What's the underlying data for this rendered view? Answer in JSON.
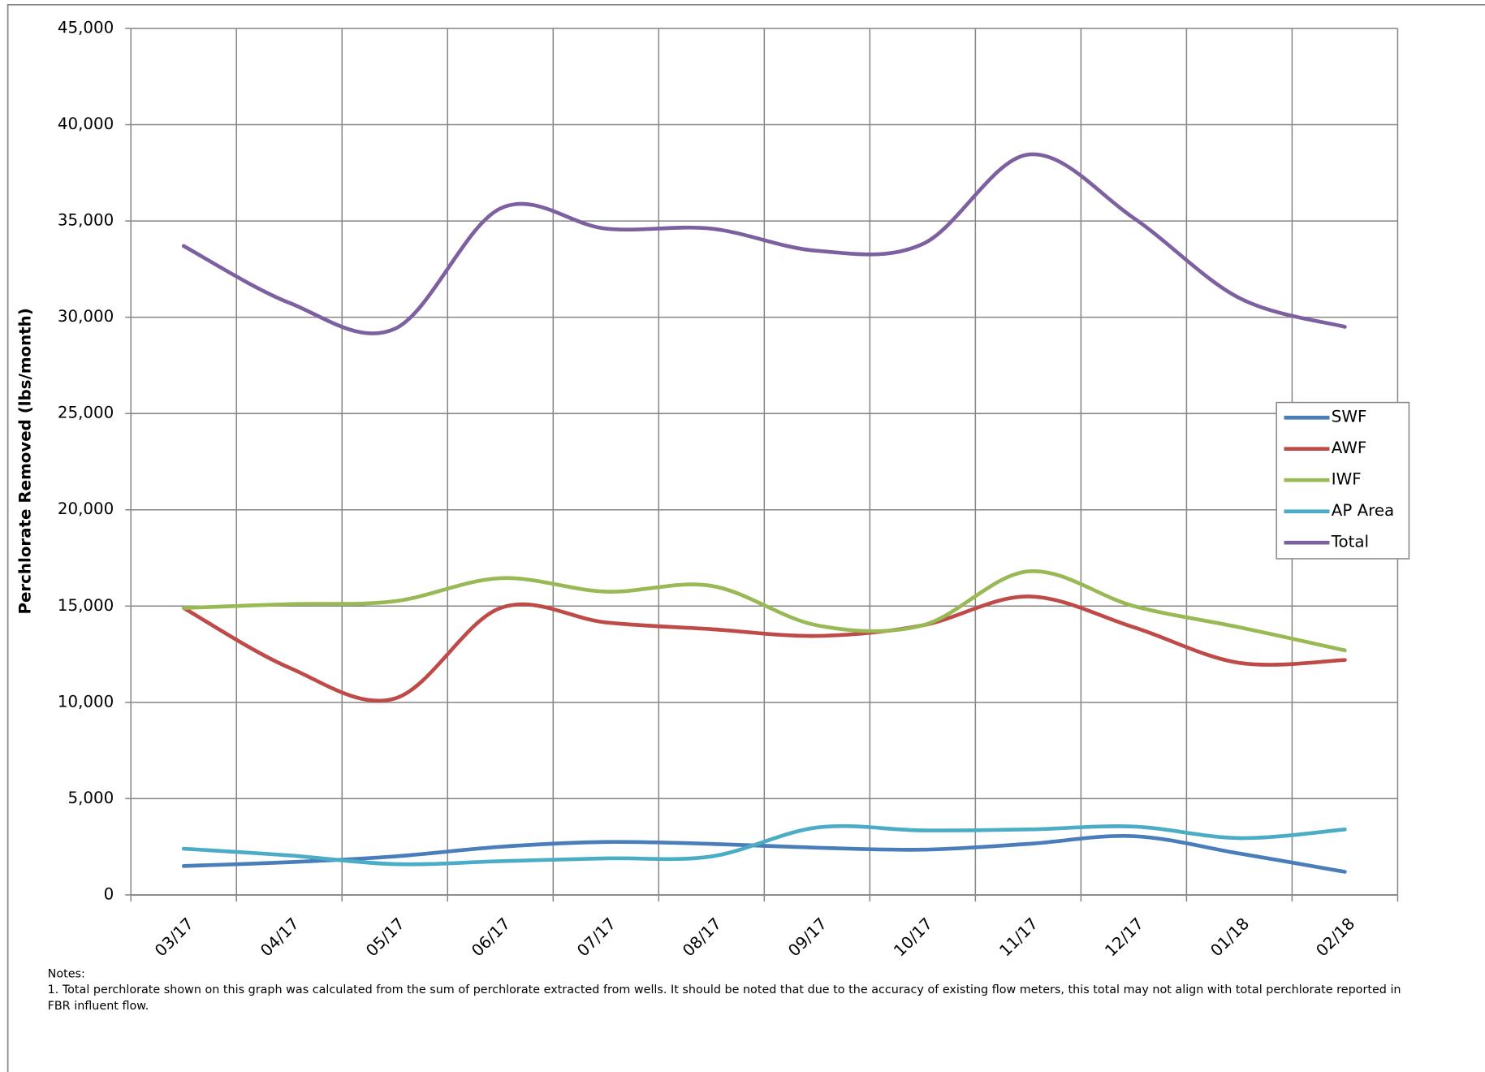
{
  "chart_data": {
    "type": "line",
    "y_label": "Perchlorate Removed (lbs/month)",
    "categories": [
      "03/17",
      "04/17",
      "05/17",
      "06/17",
      "07/17",
      "08/17",
      "09/17",
      "10/17",
      "11/17",
      "12/17",
      "01/18",
      "02/18"
    ],
    "series": [
      {
        "name": "SWF",
        "color": "#4a7ebb",
        "values": [
          1500,
          1700,
          2000,
          2500,
          2750,
          2650,
          2450,
          2350,
          2650,
          3050,
          2150,
          1200
        ]
      },
      {
        "name": "AWF",
        "color": "#be4b48",
        "values": [
          14900,
          11800,
          10200,
          14900,
          14150,
          13800,
          13450,
          14000,
          15500,
          13900,
          12050,
          12200
        ]
      },
      {
        "name": "IWF",
        "color": "#98b954",
        "values": [
          14900,
          15100,
          15250,
          16450,
          15750,
          16050,
          14000,
          14000,
          16800,
          15000,
          13900,
          12700
        ]
      },
      {
        "name": "AP Area",
        "color": "#4bacc6",
        "values": [
          2400,
          2050,
          1600,
          1750,
          1900,
          2000,
          3500,
          3350,
          3400,
          3550,
          2950,
          3400
        ]
      },
      {
        "name": "Total",
        "color": "#7d60a0",
        "values": [
          33700,
          30750,
          29400,
          35650,
          34600,
          34600,
          33450,
          33800,
          38450,
          35150,
          31000,
          29500
        ]
      }
    ],
    "ylim": [
      0,
      45000
    ],
    "yticks": [
      0,
      {
        "value": 5000,
        "label": "5,000"
      },
      {
        "value": 10000,
        "label": "10,000"
      },
      {
        "value": 15000,
        "label": "15,000"
      },
      {
        "value": 20000,
        "label": "20,000"
      },
      {
        "value": 25000,
        "label": "25,000"
      },
      {
        "value": 30000,
        "label": "30,000"
      },
      {
        "value": 35000,
        "label": "35,000"
      },
      {
        "value": 40000,
        "label": "40,000"
      },
      {
        "value": 45000,
        "label": "45,000"
      }
    ],
    "grid": true,
    "legend": "right",
    "notes": [
      "Notes:",
      "1. Total perchlorate shown on this graph was calculated from the sum of perchlorate extracted from wells. It should be noted that due to the accuracy of existing flow meters, this total may not align with total perchlorate reported in FBR influent flow."
    ]
  }
}
